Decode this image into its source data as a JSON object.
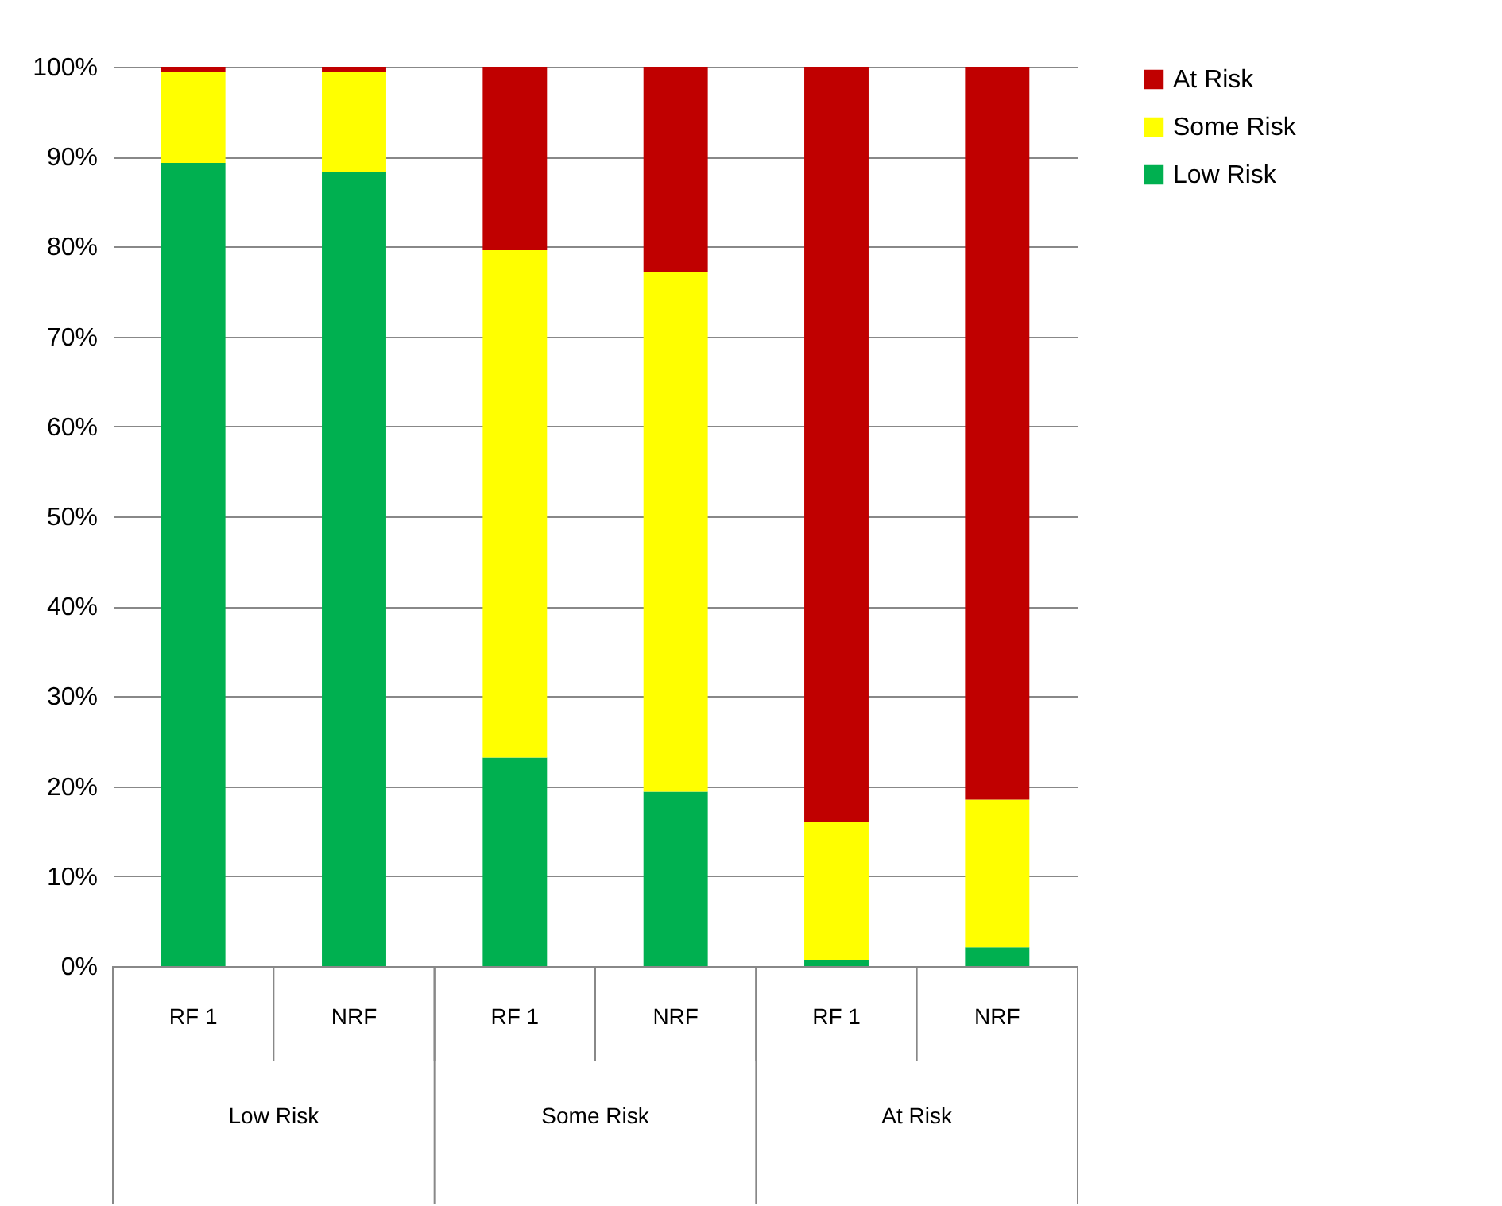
{
  "chart_data": {
    "type": "bar",
    "stacked": true,
    "categories": [
      "RF 1",
      "NRF",
      "RF 1",
      "NRF",
      "RF 1",
      "NRF"
    ],
    "annotations": [
      "Low Risk",
      "Some Risk",
      "At Risk"
    ],
    "series": [
      {
        "name": "Low Risk",
        "color": "#00b050",
        "values": [
          89.3,
          88.3,
          23.2,
          19.4,
          0.7,
          2.1
        ]
      },
      {
        "name": "Some Risk",
        "color": "#ffff00",
        "values": [
          10.1,
          11.1,
          56.4,
          57.8,
          15.3,
          16.4
        ]
      },
      {
        "name": "At Risk",
        "color": "#c00000",
        "values": [
          0.6,
          0.6,
          20.4,
          22.8,
          84.0,
          81.5
        ]
      }
    ],
    "ylim": [
      0,
      100
    ],
    "yticks": [
      {
        "value": 0,
        "label": "0%"
      },
      {
        "value": 10,
        "label": "10%"
      },
      {
        "value": 20,
        "label": "20%"
      },
      {
        "value": 30,
        "label": "30%"
      },
      {
        "value": 40,
        "label": "40%"
      },
      {
        "value": 50,
        "label": "50%"
      },
      {
        "value": 60,
        "label": "60%"
      },
      {
        "value": 70,
        "label": "70%"
      },
      {
        "value": 80,
        "label": "80%"
      },
      {
        "value": 90,
        "label": "90%"
      },
      {
        "value": 100,
        "label": "100%"
      }
    ],
    "grid": "y",
    "legend": "right"
  }
}
